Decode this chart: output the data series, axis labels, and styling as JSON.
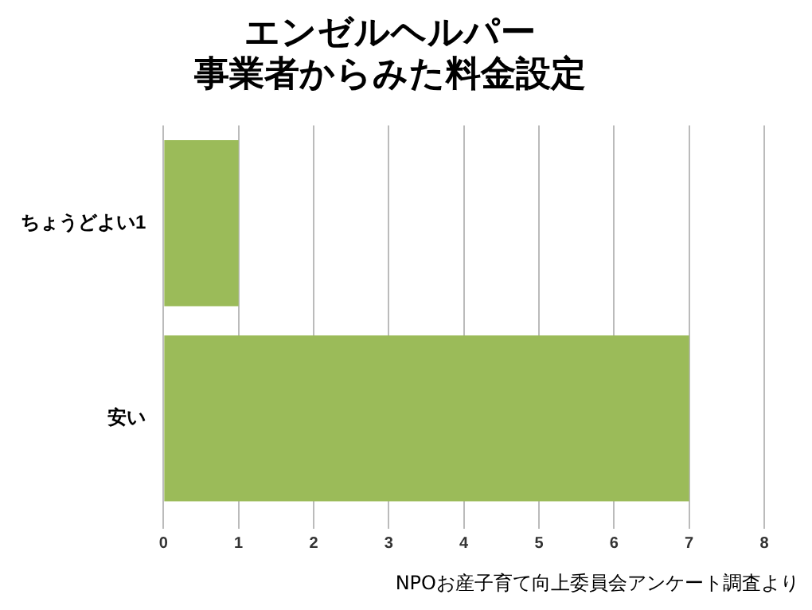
{
  "chart_data": {
    "type": "bar",
    "orientation": "horizontal",
    "title": "エンゼルヘルパー",
    "subtitle": "事業者からみた料金設定",
    "categories": [
      "ちょうどよい1",
      "安い"
    ],
    "values": [
      1,
      7
    ],
    "color": "#9bbb59",
    "xlim": [
      0,
      8
    ],
    "xticks": [
      0,
      1,
      2,
      3,
      4,
      5,
      6,
      7,
      8
    ],
    "grid": "x",
    "legend": false,
    "annotations": [
      "NPOお産子育て向上委員会アンケート調査より"
    ]
  }
}
